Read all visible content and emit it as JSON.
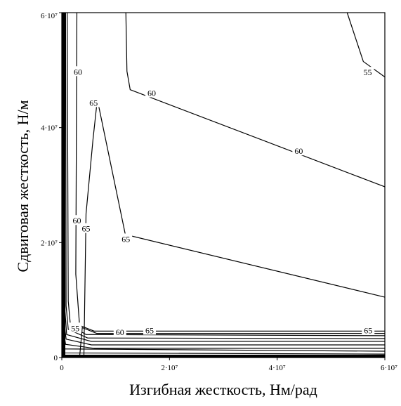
{
  "chart_data": {
    "type": "contour",
    "xlabel": "Изгибная жесткость, Нм/рад",
    "ylabel": "Сдвиговая жесткость, Н/м",
    "xlim": [
      0,
      60000000
    ],
    "ylim": [
      0,
      60000000
    ],
    "grid": false,
    "x_ticks": [
      {
        "value": 0,
        "label": "0"
      },
      {
        "value": 20000000,
        "label": "2·10⁷"
      },
      {
        "value": 40000000,
        "label": "4·10⁷"
      },
      {
        "value": 60000000,
        "label": "6·10⁷"
      }
    ],
    "y_ticks": [
      {
        "value": 0,
        "label": "0"
      },
      {
        "value": 20000000,
        "label": "2·10⁷"
      },
      {
        "value": 40000000,
        "label": "4·10⁷"
      },
      {
        "value": 60000000,
        "label": "6·10⁷"
      }
    ],
    "contours": [
      {
        "level": 55,
        "points": [
          [
            53000000,
            60000000
          ],
          [
            56000000,
            51500000
          ],
          [
            60000000,
            48800000
          ]
        ]
      },
      {
        "level": 60,
        "points": [
          [
            11900000,
            60000000
          ],
          [
            12100000,
            49800000
          ],
          [
            12700000,
            46600000
          ],
          [
            60000000,
            29700000
          ]
        ]
      },
      {
        "level": 60,
        "points": [
          [
            2800000,
            60000000
          ],
          [
            2600000,
            14500000
          ],
          [
            3300000,
            5600000
          ],
          [
            6000000,
            4600000
          ],
          [
            60000000,
            4600000
          ]
        ]
      },
      {
        "level": 65,
        "points": [
          [
            4100000,
            0
          ],
          [
            4500000,
            25000000
          ],
          [
            5800000,
            38000000
          ],
          [
            6600000,
            44900000
          ],
          [
            11800000,
            21400000
          ],
          [
            60000000,
            10500000
          ]
        ]
      },
      {
        "level": 65,
        "points": [
          [
            3300000,
            0
          ],
          [
            3800000,
            5200000
          ],
          [
            6500000,
            4200000
          ],
          [
            60000000,
            4200000
          ]
        ]
      },
      {
        "level": 55,
        "points": [
          [
            1000000,
            60000000
          ],
          [
            1200000,
            9800000
          ],
          [
            1600000,
            5600000
          ],
          [
            4500000,
            4000000
          ],
          [
            60000000,
            3800000
          ]
        ]
      },
      {
        "level": null,
        "points": [
          [
            700000,
            60000000
          ],
          [
            800000,
            9000000
          ],
          [
            1200000,
            4900000
          ],
          [
            4800000,
            3400000
          ],
          [
            60000000,
            3300000
          ]
        ]
      },
      {
        "level": null,
        "points": [
          [
            500000,
            60000000
          ],
          [
            600000,
            8000000
          ],
          [
            900000,
            4000000
          ],
          [
            5500000,
            2800000
          ],
          [
            60000000,
            2800000
          ]
        ]
      },
      {
        "level": null,
        "points": [
          [
            380000,
            60000000
          ],
          [
            450000,
            6000000
          ],
          [
            800000,
            3200000
          ],
          [
            5500000,
            2200000
          ],
          [
            60000000,
            2200000
          ]
        ]
      },
      {
        "level": null,
        "points": [
          [
            280000,
            60000000
          ],
          [
            350000,
            4500000
          ],
          [
            700000,
            2300000
          ],
          [
            6000000,
            1600000
          ],
          [
            60000000,
            1600000
          ]
        ]
      },
      {
        "level": null,
        "points": [
          [
            200000,
            60000000
          ],
          [
            260000,
            3000000
          ],
          [
            600000,
            1500000
          ],
          [
            60000000,
            1100000
          ]
        ]
      },
      {
        "level": null,
        "points": [
          [
            140000,
            60000000
          ],
          [
            180000,
            2000000
          ],
          [
            500000,
            800000
          ],
          [
            60000000,
            600000
          ]
        ]
      },
      {
        "level": null,
        "points": [
          [
            80000,
            60000000
          ],
          [
            100000,
            1000000
          ],
          [
            400000,
            300000
          ],
          [
            60000000,
            200000
          ]
        ]
      }
    ],
    "contour_labels": [
      {
        "text": "55",
        "x": 56800000,
        "y": 49600000
      },
      {
        "text": "60",
        "x": 16700000,
        "y": 46000000
      },
      {
        "text": "60",
        "x": 44000000,
        "y": 35900000
      },
      {
        "text": "60",
        "x": 3000000,
        "y": 49700000
      },
      {
        "text": "65",
        "x": 5900000,
        "y": 44300000
      },
      {
        "text": "65",
        "x": 11900000,
        "y": 20600000
      },
      {
        "text": "60",
        "x": 2800000,
        "y": 23800000
      },
      {
        "text": "65",
        "x": 4500000,
        "y": 22400000
      },
      {
        "text": "55",
        "x": 2500000,
        "y": 5100000
      },
      {
        "text": "60",
        "x": 10800000,
        "y": 4400000
      },
      {
        "text": "65",
        "x": 16300000,
        "y": 4700000
      },
      {
        "text": "65",
        "x": 56900000,
        "y": 4700000
      }
    ]
  }
}
